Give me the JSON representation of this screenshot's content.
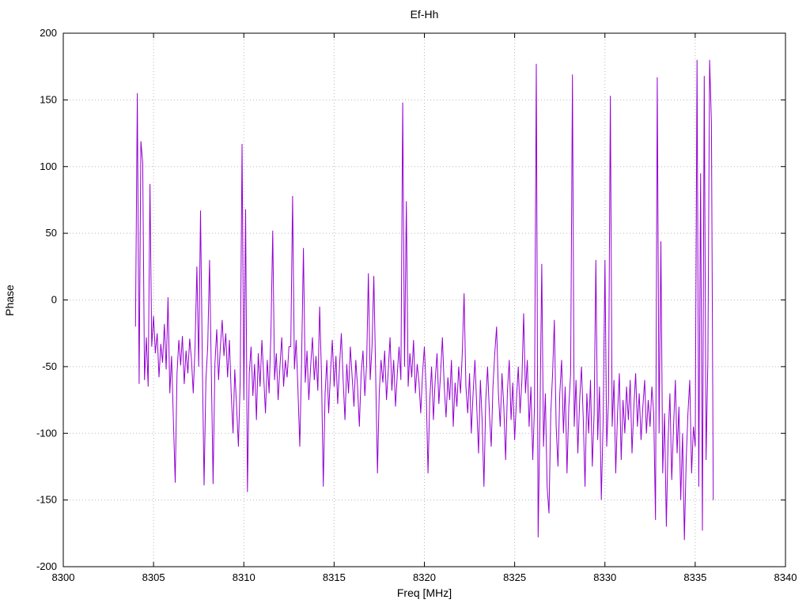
{
  "chart": {
    "title": "Ef-Hh",
    "xlabel": "Freq [MHz]",
    "ylabel": "Phase"
  },
  "chart_data": {
    "type": "line",
    "title": "Ef-Hh",
    "xlabel": "Freq [MHz]",
    "ylabel": "Phase",
    "xlim": [
      8300,
      8340
    ],
    "ylim": [
      -200,
      200
    ],
    "x_ticks": [
      8300,
      8305,
      8310,
      8315,
      8320,
      8325,
      8330,
      8335,
      8340
    ],
    "y_ticks": [
      -200,
      -150,
      -100,
      -50,
      0,
      50,
      100,
      150,
      200
    ],
    "grid": true,
    "legend": "none",
    "line_color": "#9400d3",
    "series_name": "Ef-Hh phase",
    "x_start": 8304.0,
    "x_step": 0.1,
    "values": [
      -20,
      155,
      -63,
      119,
      103,
      -60,
      -28,
      -65,
      87,
      -35,
      -12,
      -40,
      -25,
      -58,
      -33,
      -47,
      -18,
      -52,
      2,
      -70,
      -42,
      -90,
      -137,
      -55,
      -30,
      -49,
      -27,
      -63,
      -38,
      -55,
      -29,
      -45,
      -70,
      -35,
      25,
      -50,
      67,
      -48,
      -139,
      -60,
      -35,
      30,
      -55,
      -138,
      -48,
      -22,
      -60,
      -35,
      -15,
      -42,
      -25,
      -58,
      -30,
      -70,
      -100,
      -52,
      -80,
      -110,
      -60,
      117,
      -75,
      68,
      -144,
      -55,
      -35,
      -72,
      -48,
      -90,
      -40,
      -65,
      -30,
      -58,
      -85,
      -45,
      -70,
      -25,
      52,
      -60,
      -40,
      -75,
      -50,
      -28,
      -65,
      -45,
      -58,
      -35,
      -35,
      78,
      -52,
      -30,
      -68,
      -110,
      -45,
      39,
      -62,
      -38,
      -75,
      -50,
      -28,
      -60,
      -42,
      -68,
      -5,
      -55,
      -140,
      -70,
      -45,
      -85,
      -55,
      -30,
      -65,
      -42,
      -78,
      -50,
      -25,
      -60,
      -90,
      -48,
      -70,
      -35,
      -58,
      -80,
      -45,
      -65,
      -95,
      -55,
      -38,
      -72,
      -48,
      20,
      -60,
      -35,
      18,
      -55,
      -130,
      -70,
      -45,
      -62,
      -38,
      -75,
      -52,
      -28,
      -68,
      -45,
      -80,
      -55,
      -35,
      -60,
      148,
      -50,
      74,
      -65,
      -40,
      -58,
      -30,
      -70,
      -48,
      -62,
      -85,
      -55,
      -35,
      -68,
      -130,
      -75,
      -50,
      -90,
      -60,
      -40,
      -78,
      -55,
      -28,
      -65,
      -88,
      -58,
      -75,
      -45,
      -95,
      -62,
      -80,
      -50,
      -70,
      -40,
      5,
      -65,
      -85,
      -55,
      -100,
      -70,
      -45,
      -80,
      -115,
      -60,
      -90,
      -140,
      -75,
      -50,
      -85,
      -110,
      -65,
      -40,
      -20,
      -70,
      -95,
      -55,
      -80,
      -120,
      -68,
      -45,
      -90,
      -62,
      -105,
      -75,
      -50,
      -85,
      -60,
      -10,
      -70,
      -45,
      -95,
      -65,
      -120,
      -80,
      177,
      -178,
      -90,
      27,
      -110,
      -70,
      -140,
      -160,
      -85,
      -55,
      -15,
      -95,
      -125,
      -70,
      -45,
      -100,
      -65,
      -130,
      -80,
      -55,
      169,
      -95,
      -60,
      -115,
      -75,
      -50,
      -90,
      -140,
      -70,
      -100,
      -60,
      -125,
      -85,
      30,
      -105,
      -65,
      -150,
      -90,
      30,
      -110,
      -75,
      153,
      -95,
      -60,
      -130,
      -85,
      -55,
      -120,
      -75,
      -100,
      -65,
      -90,
      -60,
      -115,
      -80,
      -55,
      -95,
      -70,
      -105,
      -80,
      -60,
      -100,
      -75,
      -95,
      -65,
      -85,
      -165,
      167,
      -100,
      44,
      -130,
      -85,
      -170,
      -105,
      -70,
      -135,
      -95,
      -60,
      -115,
      -80,
      -150,
      -100,
      -180,
      -120,
      -85,
      -60,
      -130,
      -95,
      -110,
      180,
      -140,
      95,
      -173,
      168,
      -120,
      -45,
      180,
      133,
      -150
    ]
  }
}
